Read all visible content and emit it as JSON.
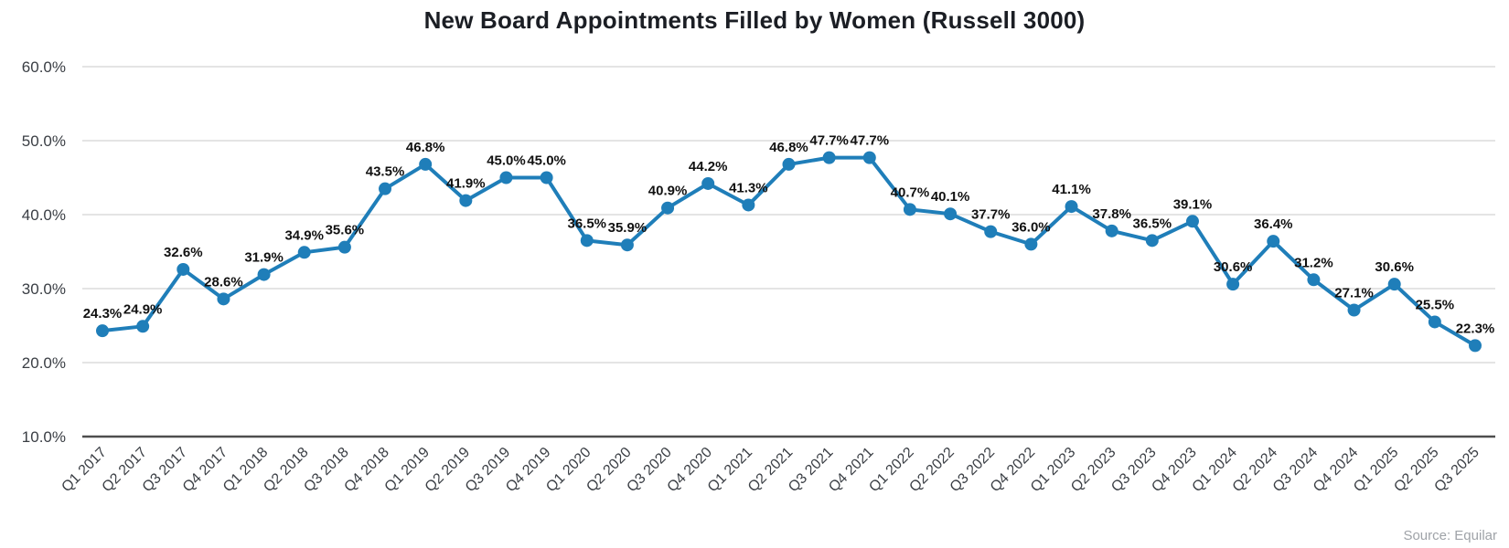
{
  "chart_data": {
    "type": "line",
    "title": "New Board Appointments Filled by Women (Russell 3000)",
    "categories": [
      "Q1 2017",
      "Q2 2017",
      "Q3 2017",
      "Q4 2017",
      "Q1 2018",
      "Q2 2018",
      "Q3 2018",
      "Q4 2018",
      "Q1 2019",
      "Q2 2019",
      "Q3 2019",
      "Q4 2019",
      "Q1 2020",
      "Q2 2020",
      "Q3 2020",
      "Q4 2020",
      "Q1 2021",
      "Q2 2021",
      "Q3 2021",
      "Q4 2021",
      "Q1 2022",
      "Q2 2022",
      "Q3 2022",
      "Q4 2022",
      "Q1 2023",
      "Q2 2023",
      "Q3 2023",
      "Q4 2023",
      "Q1 2024",
      "Q2 2024",
      "Q3 2024",
      "Q4 2024",
      "Q1 2025",
      "Q2 2025",
      "Q3 2025"
    ],
    "values": [
      24.3,
      24.9,
      32.6,
      28.6,
      31.9,
      34.9,
      35.6,
      43.5,
      46.8,
      41.9,
      45.0,
      45.0,
      36.5,
      35.9,
      40.9,
      44.2,
      41.3,
      46.8,
      47.7,
      47.7,
      40.7,
      40.1,
      37.7,
      36.0,
      41.1,
      37.8,
      36.5,
      39.1,
      30.6,
      36.4,
      31.2,
      27.1,
      30.6,
      25.5,
      22.3
    ],
    "point_labels": [
      "24.3%",
      "24.9%",
      "32.6%",
      "28.6%",
      "31.9%",
      "34.9%",
      "35.6%",
      "43.5%",
      "46.8%",
      "41.9%",
      "45.0%",
      "45.0%",
      "36.5%",
      "35.9%",
      "40.9%",
      "44.2%",
      "41.3%",
      "46.8%",
      "47.7%",
      "47.7%",
      "40.7%",
      "40.1%",
      "37.7%",
      "36.0%",
      "41.1%",
      "37.8%",
      "36.5%",
      "39.1%",
      "30.6%",
      "36.4%",
      "31.2%",
      "27.1%",
      "30.6%",
      "25.5%",
      "22.3%"
    ],
    "xlabel": "",
    "ylabel": "",
    "ylim": [
      10,
      60
    ],
    "y_ticks": [
      {
        "value": 60,
        "label": "60.0%"
      },
      {
        "value": 50,
        "label": "50.0%"
      },
      {
        "value": 40,
        "label": "40.0%"
      },
      {
        "value": 30,
        "label": "30.0%"
      },
      {
        "value": 20,
        "label": "20.0%"
      },
      {
        "value": 10,
        "label": "10.0%"
      }
    ],
    "grid": true,
    "legend": "none",
    "data_labels_shown": true
  },
  "footer": {
    "source": "Source: Equilar"
  },
  "colors": {
    "line": "#1f7eb9",
    "marker": "#1f7eb9",
    "data_label": "#111111",
    "grid": "#dcdcdc",
    "axis_line": "#4d4d4d",
    "tick_label": "#3a3e44",
    "title": "#1b1e24",
    "source": "#9fa3a8",
    "background": "#ffffff"
  }
}
